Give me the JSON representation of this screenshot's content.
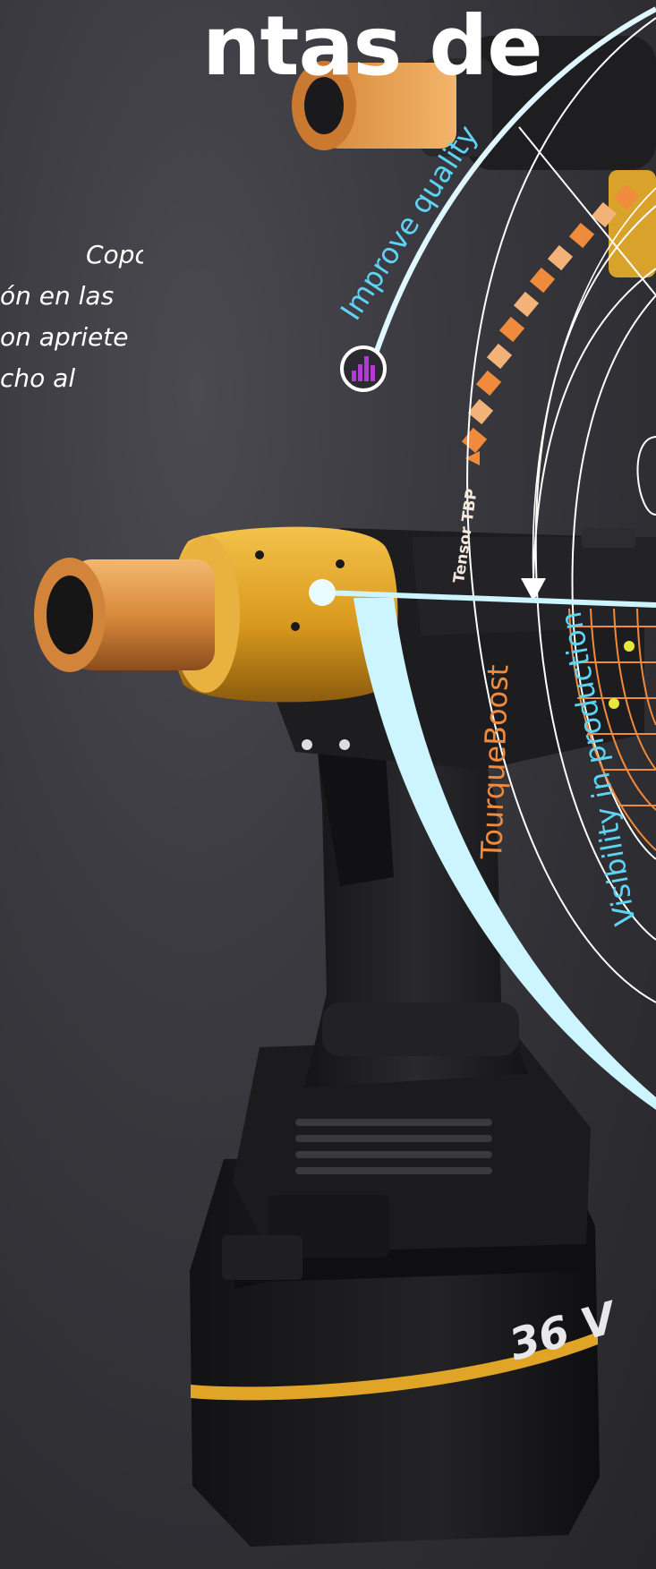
{
  "headline": "ntas de",
  "intro_lines": [
    "Copco",
    "ón en las",
    "on apriete",
    "cho al"
  ],
  "labels": {
    "improve_quality": "Improve quality",
    "tensor_tbp": "Tensor TBP",
    "tourque_boost": "TourqueBoost",
    "visibility_production": "Visibility in production",
    "battery_voltage": "36 V"
  },
  "icons": [
    "bar-chart-icon"
  ],
  "colors": {
    "accent_cyan": "#b9f2ff",
    "accent_orange": "#f08a3c",
    "tool_yellow": "#e0a526",
    "tool_black": "#1c1c1e",
    "accent_purple": "#b23bd6"
  }
}
